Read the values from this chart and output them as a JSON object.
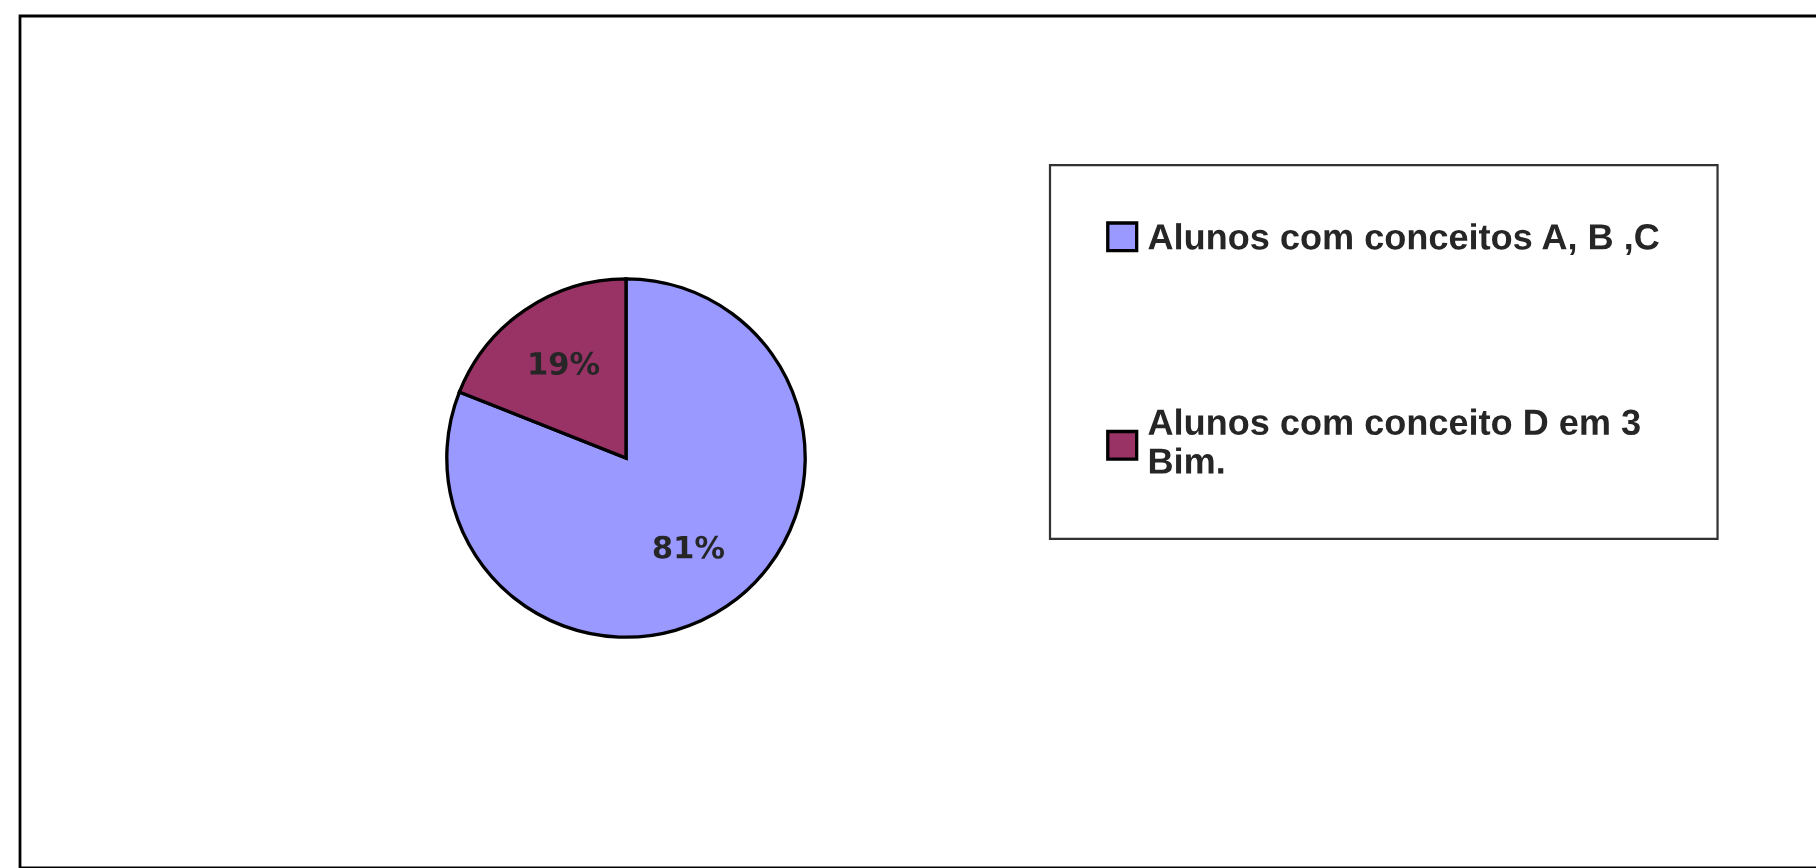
{
  "chart_data": {
    "type": "pie",
    "categories": [
      "Alunos com conceitos A, B ,C",
      "Alunos com conceito D em 3\nBim."
    ],
    "values": [
      81,
      19
    ],
    "colors": [
      "#9999ff",
      "#993366"
    ],
    "value_labels": [
      "81%",
      "19%"
    ],
    "legend": "right"
  }
}
